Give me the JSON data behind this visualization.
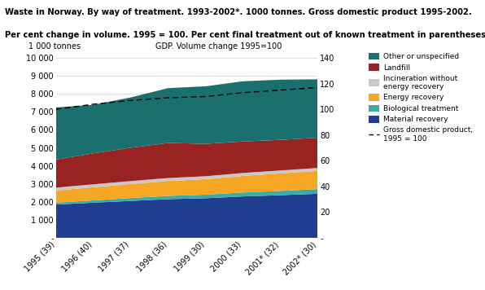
{
  "years": [
    "1995 (39)",
    "1996 (40)",
    "1997 (37)",
    "1998 (36)",
    "1999 (30)",
    "2000 (33)",
    "2001* (32)",
    "2002* (30)"
  ],
  "material_recovery": [
    1850,
    1950,
    2050,
    2150,
    2200,
    2300,
    2370,
    2450
  ],
  "biological_treatment": [
    100,
    130,
    160,
    180,
    200,
    220,
    240,
    260
  ],
  "energy_recovery": [
    680,
    730,
    780,
    830,
    860,
    920,
    970,
    1010
  ],
  "incineration_no_energy": [
    160,
    165,
    165,
    165,
    165,
    165,
    165,
    165
  ],
  "landfill": [
    1560,
    1720,
    1850,
    1950,
    1800,
    1750,
    1700,
    1680
  ],
  "other_unspecified": [
    2900,
    2700,
    2800,
    3050,
    3200,
    3350,
    3350,
    3250
  ],
  "gdp": [
    100,
    104,
    107,
    109,
    110,
    113,
    115,
    117
  ],
  "colors": {
    "material_recovery": "#1f3d91",
    "biological_treatment": "#3aada8",
    "energy_recovery": "#f5a623",
    "incineration_no_energy": "#c8c8c8",
    "landfill": "#992222",
    "other_unspecified": "#1a706e"
  },
  "title_line1": "Waste in Norway. By way of treatment. 1993-2002*. 1000 tonnes. Gross domestic product 1995-2002.",
  "title_line2": "Per cent change in volume. 1995 = 100. Per cent final treatment out of known treatment in parentheses",
  "ylabel_left": "1 000 tonnes",
  "ylabel_right": "GDP. Volume change 1995=100",
  "ylim_left": [
    0,
    10000
  ],
  "ylim_right": [
    0,
    140
  ],
  "yticks_left": [
    0,
    1000,
    2000,
    3000,
    4000,
    5000,
    6000,
    7000,
    8000,
    9000,
    10000
  ],
  "ytick_labels_left": [
    "-",
    "1 000",
    "2 000",
    "3 000",
    "4 000",
    "5 000",
    "6 000",
    "7 000",
    "8 000",
    "9 000",
    "10 000"
  ],
  "yticks_right": [
    0,
    20,
    40,
    60,
    80,
    100,
    120,
    140
  ],
  "ytick_labels_right": [
    "-",
    "20",
    "40",
    "60",
    "80",
    "100",
    "120",
    "140"
  ],
  "background_color": "#ffffff",
  "title_bg_color": "#f0f0f0"
}
